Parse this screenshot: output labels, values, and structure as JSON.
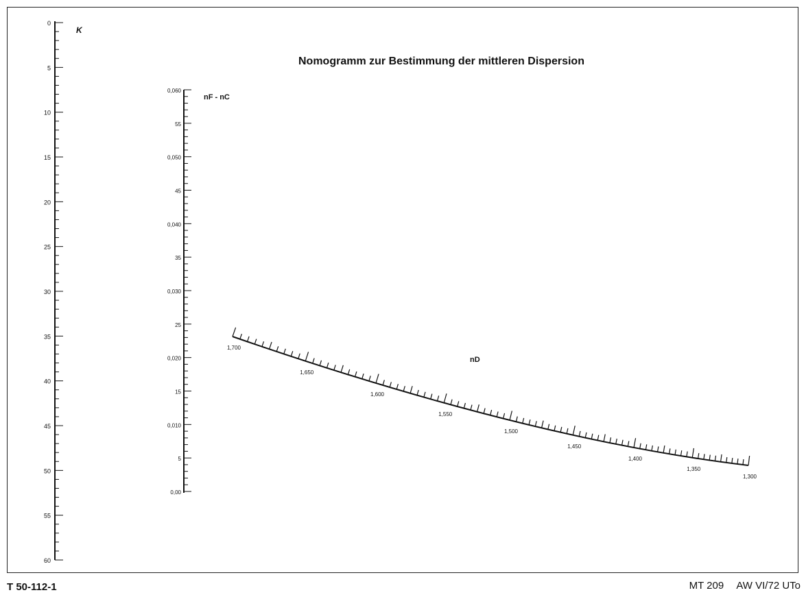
{
  "title": "Nomogramm zur Bestimmung der mittleren Dispersion",
  "scales": {
    "k": {
      "label": "K",
      "tick_labels": [
        "0",
        "5",
        "10",
        "15",
        "20",
        "25",
        "30",
        "35",
        "40",
        "45",
        "50",
        "55",
        "60"
      ]
    },
    "dispersion": {
      "label": "nF - nC",
      "tick_labels": [
        "0,060",
        "55",
        "0,050",
        "45",
        "0,040",
        "35",
        "0,030",
        "25",
        "0,020",
        "15",
        "0,010",
        "5",
        "0,00"
      ]
    },
    "nd": {
      "label": "nD",
      "tick_labels": [
        "1,700",
        "1,650",
        "1,600",
        "1,550",
        "1,500",
        "1,450",
        "1,400",
        "1,350",
        "1,300"
      ]
    }
  },
  "footer": {
    "doc_id": "T 50-112-1",
    "code": "MT 209",
    "revision": "AW VI/72 UTo"
  }
}
